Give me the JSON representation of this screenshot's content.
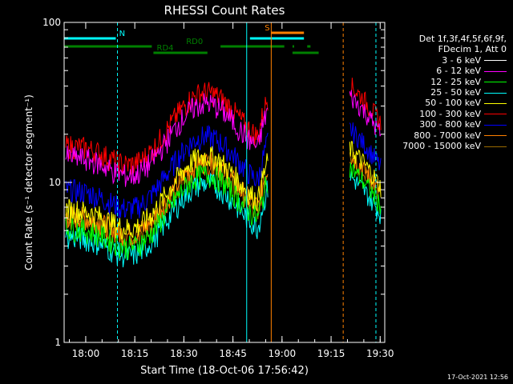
{
  "chart_data": {
    "type": "line",
    "title": "RHESSI Count Rates",
    "xlabel": "Start Time (18-Oct-06 17:56:42)",
    "ylabel": "Count Rate (s⁻¹ detector segment⁻¹)",
    "yscale": "log",
    "ylim": [
      1,
      100
    ],
    "yticks": [
      "1",
      "10",
      "100"
    ],
    "xlim_minutes": [
      -3.3,
      36.0
    ],
    "xticks": [
      "18:00",
      "18:15",
      "18:30",
      "18:45",
      "19:00",
      "19:15",
      "19:30"
    ],
    "header": [
      "Det 1f,3f,4f,5f,6f,9f,",
      "FDecim 1, Att 0"
    ],
    "gap_minutes": [
      42.0,
      53.5
    ],
    "series": [
      {
        "name": "3 - 6 keV",
        "color": "#000000",
        "base": 3.0
      },
      {
        "name": "6 - 12 keV",
        "color": "#ff00ff",
        "base": 14.5
      },
      {
        "name": "12 - 25 keV",
        "color": "#00ff00",
        "base": 5.2
      },
      {
        "name": "25 - 50 keV",
        "color": "#00ffff",
        "base": 4.6
      },
      {
        "name": "50 - 100 keV",
        "color": "#ffff00",
        "base": 6.8
      },
      {
        "name": "100 - 300 keV",
        "color": "#ff0000",
        "base": 17.0
      },
      {
        "name": "300 - 800 keV",
        "color": "#0000ff",
        "base": 9.0
      },
      {
        "name": "800 - 7000 keV",
        "color": "#ff8000",
        "base": 6.2
      },
      {
        "name": "7000 - 15000 keV",
        "color": "#9a6a00",
        "base": 6.0
      }
    ],
    "flags": [
      {
        "label": "N",
        "color": "#00ffff",
        "segments": [
          [
            -3.3,
            12.5
          ],
          [
            53.5,
            70.0
          ]
        ]
      },
      {
        "label": "RD0",
        "color": "#008000",
        "segments": [
          [
            -3.3,
            23.5
          ],
          [
            44.5,
            64.0
          ],
          [
            66.5,
            67.0
          ],
          [
            71.0,
            72.0
          ]
        ]
      },
      {
        "label": "RD4",
        "color": "#008000",
        "segments": [
          [
            24.0,
            40.5
          ],
          [
            66.5,
            74.5
          ]
        ]
      },
      {
        "label": "S",
        "color": "#ff8000",
        "segments": [
          [
            60.0,
            70.0
          ]
        ]
      }
    ],
    "vlines": [
      {
        "t": 13.0,
        "color": "#00ffff",
        "style": "dashed"
      },
      {
        "t": 60.0,
        "color": "#ff8000",
        "style": "solid"
      },
      {
        "t": 52.5,
        "color": "#00ffff",
        "style": "solid"
      },
      {
        "t": 82.0,
        "color": "#ff8000",
        "style": "dashed"
      },
      {
        "t": 92.0,
        "color": "#00ffff",
        "style": "dashed"
      }
    ]
  },
  "timestamp": "17-Oct-2021 12:56"
}
